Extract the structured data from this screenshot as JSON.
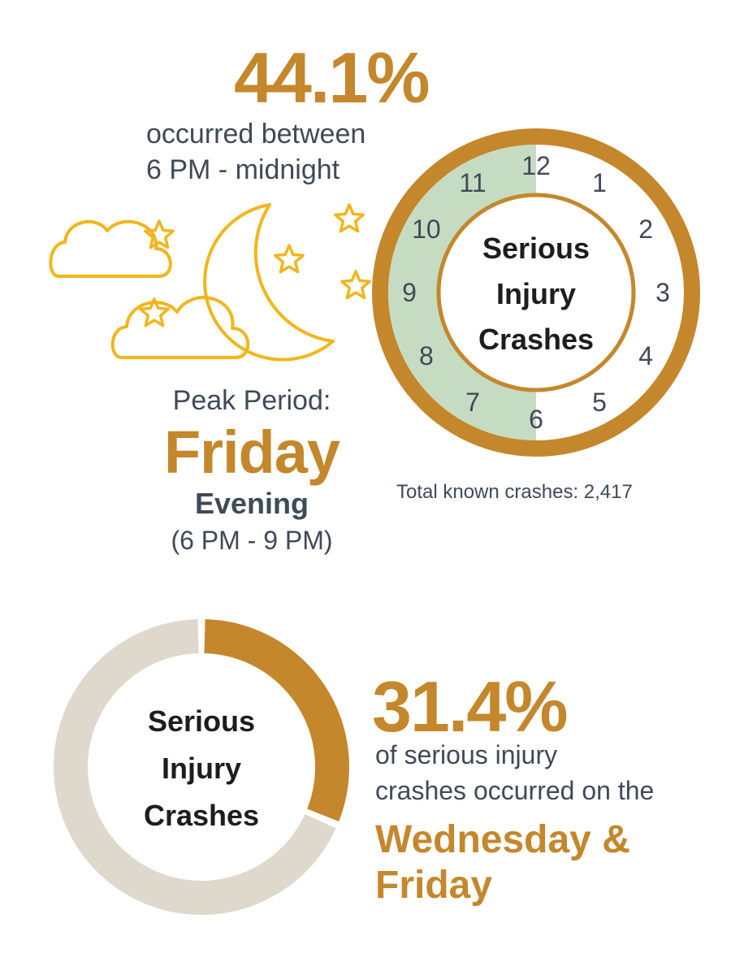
{
  "colors": {
    "gold": "#c4872b",
    "sage": "#c5dcc2",
    "slate": "#3f4a57",
    "beige": "#ded8cd",
    "icon_yellow": "#f2b51c"
  },
  "icons": [
    "moon-icon",
    "cloud-icon",
    "star-icon"
  ],
  "top": {
    "percent": "44.1%",
    "line1": "occurred between",
    "line2": "6 PM - midnight"
  },
  "peak": {
    "label": "Peak Period:",
    "day": "Friday",
    "part": "Evening",
    "range": "(6 PM - 9 PM)"
  },
  "total_label": "Total known crashes: 2,417",
  "bottom": {
    "percent": "31.4%",
    "line1": "of serious injury",
    "line2": "crashes occurred on the",
    "days1": "Wednesday &",
    "days2": "Friday"
  },
  "chart_data": [
    {
      "type": "pie",
      "title": "Serious Injury Crashes",
      "title_lines": [
        "Serious",
        "Injury",
        "Crashes"
      ],
      "clock_labels": [
        "12",
        "1",
        "2",
        "3",
        "4",
        "5",
        "6",
        "7",
        "8",
        "9",
        "10",
        "11"
      ],
      "highlight_hours": [
        18,
        24
      ],
      "highlight_percent": 44.1,
      "total": 2417
    },
    {
      "type": "pie",
      "title": "Serious Injury Crashes",
      "title_lines": [
        "Serious",
        "Injury",
        "Crashes"
      ],
      "values": [
        31.4,
        68.6
      ]
    }
  ]
}
